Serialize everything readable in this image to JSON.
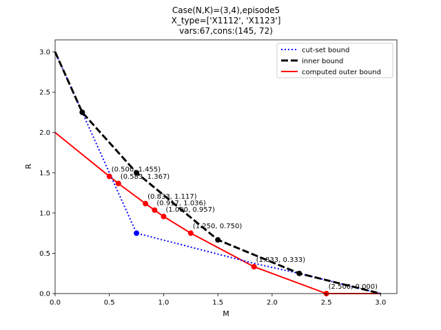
{
  "chart_data": {
    "type": "line",
    "title_lines": [
      "Case(N,K)=(3,4),episode5",
      "X_type=['X1112', 'X1123']",
      "vars:67,cons:(145, 72)"
    ],
    "xlabel": "M",
    "ylabel": "R",
    "xlim": [
      0,
      3.15
    ],
    "ylim": [
      0,
      3.15
    ],
    "x_ticks": [
      0.0,
      0.5,
      1.0,
      1.5,
      2.0,
      2.5,
      3.0
    ],
    "y_ticks": [
      0.0,
      0.5,
      1.0,
      1.5,
      2.0,
      2.5,
      3.0
    ],
    "x_tick_labels": [
      "0.0",
      "0.5",
      "1.0",
      "1.5",
      "2.0",
      "2.5",
      "3.0"
    ],
    "y_tick_labels": [
      "0.0",
      "0.5",
      "1.0",
      "1.5",
      "2.0",
      "2.5",
      "3.0"
    ],
    "grid": false,
    "legend_position": "top-right",
    "series": [
      {
        "name": "cut-set bound",
        "color": "#0000ff",
        "style": "dotted",
        "points": [
          [
            0,
            3.0
          ],
          [
            0.25,
            2.25
          ],
          [
            0.75,
            0.75
          ],
          [
            1.833,
            0.375
          ],
          [
            2.25,
            0.25
          ],
          [
            3.0,
            0.0
          ]
        ],
        "marked": [
          [
            0.75,
            0.75
          ]
        ]
      },
      {
        "name": "inner bound",
        "color": "#000000",
        "style": "dashed",
        "points": [
          [
            0,
            3.0
          ],
          [
            0.25,
            2.25
          ],
          [
            0.75,
            1.5
          ],
          [
            1.5,
            0.667
          ],
          [
            2.25,
            0.25
          ],
          [
            3.0,
            0.0
          ]
        ],
        "marked": [
          [
            0.25,
            2.25
          ],
          [
            0.75,
            1.5
          ],
          [
            1.5,
            0.667
          ],
          [
            2.25,
            0.25
          ]
        ]
      },
      {
        "name": "computed outer bound",
        "color": "#ff0000",
        "style": "solid",
        "points": [
          [
            0,
            2.0
          ],
          [
            0.5,
            1.455
          ],
          [
            0.583,
            1.367
          ],
          [
            0.833,
            1.117
          ],
          [
            0.917,
            1.036
          ],
          [
            1.0,
            0.957
          ],
          [
            1.25,
            0.75
          ],
          [
            1.833,
            0.333
          ],
          [
            2.5,
            0.0
          ],
          [
            3.0,
            0.0
          ]
        ],
        "marked": [
          [
            0.5,
            1.455
          ],
          [
            0.583,
            1.367
          ],
          [
            0.833,
            1.117
          ],
          [
            0.917,
            1.036
          ],
          [
            1.0,
            0.957
          ],
          [
            1.25,
            0.75
          ],
          [
            1.833,
            0.333
          ],
          [
            2.5,
            0.0
          ]
        ]
      }
    ],
    "annotations": [
      {
        "x": 0.5,
        "y": 1.455,
        "text": "(0.500, 1.455)"
      },
      {
        "x": 0.583,
        "y": 1.367,
        "text": "(0.583, 1.367)"
      },
      {
        "x": 0.833,
        "y": 1.117,
        "text": "(0.833, 1.117)"
      },
      {
        "x": 0.917,
        "y": 1.036,
        "text": "(0.917, 1.036)"
      },
      {
        "x": 1.0,
        "y": 0.957,
        "text": "(1.000, 0.957)"
      },
      {
        "x": 1.25,
        "y": 0.75,
        "text": "(1.250, 0.750)"
      },
      {
        "x": 1.833,
        "y": 0.333,
        "text": "(1.833, 0.333)"
      },
      {
        "x": 2.5,
        "y": 0.0,
        "text": "(2.500, 0.000)"
      }
    ]
  }
}
